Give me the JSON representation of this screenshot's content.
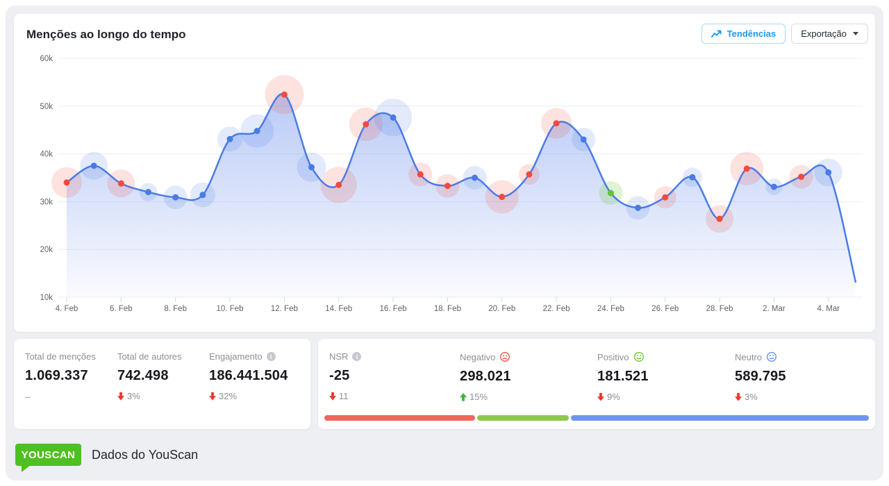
{
  "header": {
    "title": "Menções ao longo do tempo",
    "trends_button": "Tendências",
    "export_button": "Exportação"
  },
  "chart_data": {
    "type": "area",
    "title": "Menções ao longo do tempo",
    "xlabel": "",
    "ylabel": "",
    "grid": "horizontal",
    "legend": "none",
    "y_ticks": [
      "60k",
      "50k",
      "40k",
      "30k",
      "20k",
      "10k"
    ],
    "y_range": [
      10000,
      60000
    ],
    "x_tick_labels": [
      "4. Feb",
      "6. Feb",
      "8. Feb",
      "10. Feb",
      "12. Feb",
      "14. Feb",
      "16. Feb",
      "18. Feb",
      "20. Feb",
      "22. Feb",
      "24. Feb",
      "26. Feb",
      "28. Feb",
      "2. Mar",
      "4. Mar"
    ],
    "series_name": "Menções",
    "points": [
      {
        "date": "4. Feb",
        "value": 34000,
        "sentiment": "negative",
        "halo": 22,
        "dot": true
      },
      {
        "date": "5. Feb",
        "value": 37500,
        "sentiment": "neutral",
        "halo": 20,
        "dot": true
      },
      {
        "date": "6. Feb",
        "value": 33800,
        "sentiment": "negative",
        "halo": 20,
        "dot": true
      },
      {
        "date": "7. Feb",
        "value": 32000,
        "sentiment": "neutral",
        "halo": 13,
        "dot": true
      },
      {
        "date": "8. Feb",
        "value": 30900,
        "sentiment": "neutral",
        "halo": 17,
        "dot": true
      },
      {
        "date": "9. Feb",
        "value": 31400,
        "sentiment": "neutral",
        "halo": 18,
        "dot": true
      },
      {
        "date": "10. Feb",
        "value": 43100,
        "sentiment": "neutral",
        "halo": 18,
        "dot": true
      },
      {
        "date": "11. Feb",
        "value": 44800,
        "sentiment": "neutral",
        "halo": 24,
        "dot": true
      },
      {
        "date": "12. Feb",
        "value": 52400,
        "sentiment": "negative",
        "halo": 28,
        "dot": true
      },
      {
        "date": "13. Feb",
        "value": 37200,
        "sentiment": "neutral",
        "halo": 21,
        "dot": true
      },
      {
        "date": "14. Feb",
        "value": 33500,
        "sentiment": "negative",
        "halo": 26,
        "dot": true
      },
      {
        "date": "15. Feb",
        "value": 46200,
        "sentiment": "negative",
        "halo": 24,
        "dot": true
      },
      {
        "date": "16. Feb",
        "value": 47600,
        "sentiment": "neutral",
        "halo": 27,
        "dot": true
      },
      {
        "date": "17. Feb",
        "value": 35700,
        "sentiment": "negative",
        "halo": 17,
        "dot": true
      },
      {
        "date": "18. Feb",
        "value": 33300,
        "sentiment": "negative",
        "halo": 17,
        "dot": true
      },
      {
        "date": "19. Feb",
        "value": 35000,
        "sentiment": "neutral",
        "halo": 17,
        "dot": true
      },
      {
        "date": "20. Feb",
        "value": 31000,
        "sentiment": "negative",
        "halo": 24,
        "dot": true
      },
      {
        "date": "21. Feb",
        "value": 35700,
        "sentiment": "negative",
        "halo": 15,
        "dot": true
      },
      {
        "date": "22. Feb",
        "value": 46400,
        "sentiment": "negative",
        "halo": 22,
        "dot": true
      },
      {
        "date": "23. Feb",
        "value": 43000,
        "sentiment": "neutral",
        "halo": 17,
        "dot": true
      },
      {
        "date": "24. Feb",
        "value": 31800,
        "sentiment": "positive",
        "halo": 17,
        "dot": true
      },
      {
        "date": "25. Feb",
        "value": 28700,
        "sentiment": "neutral",
        "halo": 17,
        "dot": true
      },
      {
        "date": "26. Feb",
        "value": 30900,
        "sentiment": "negative",
        "halo": 16,
        "dot": true
      },
      {
        "date": "27. Feb",
        "value": 35100,
        "sentiment": "neutral",
        "halo": 14,
        "dot": true
      },
      {
        "date": "28. Feb",
        "value": 26400,
        "sentiment": "negative",
        "halo": 20,
        "dot": true
      },
      {
        "date": "1. Mar",
        "value": 36900,
        "sentiment": "negative",
        "halo": 24,
        "dot": true
      },
      {
        "date": "2. Mar",
        "value": 33100,
        "sentiment": "neutral",
        "halo": 12,
        "dot": true
      },
      {
        "date": "3. Mar",
        "value": 35200,
        "sentiment": "negative",
        "halo": 17,
        "dot": true
      },
      {
        "date": "4. Mar",
        "value": 36100,
        "sentiment": "neutral",
        "halo": 20,
        "dot": true
      },
      {
        "date": "5. Mar",
        "value": 13200,
        "sentiment": "none",
        "halo": 0,
        "dot": false
      }
    ],
    "colors": {
      "line": "#4a7be5",
      "area_top": "rgba(86,126,235,0.48)",
      "area_bottom": "rgba(86,126,235,0.03)",
      "negative": "#f4493d",
      "positive": "#62c52f",
      "neutral": "#4a7be5",
      "grid": "#eceef1",
      "tick": "#ccd6ec",
      "axis_text": "#5d6369"
    }
  },
  "stats_left": {
    "items": [
      {
        "label": "Total de menções",
        "value": "1.069.337",
        "delta_text": "–",
        "delta_dir": "none"
      },
      {
        "label": "Total de autores",
        "value": "742.498",
        "delta_text": "3%",
        "delta_dir": "down"
      },
      {
        "label": "Engajamento",
        "value": "186.441.504",
        "delta_text": "32%",
        "delta_dir": "down",
        "info": true
      }
    ]
  },
  "stats_right": {
    "items": [
      {
        "label": "NSR",
        "value": "-25",
        "delta_text": "11",
        "delta_dir": "down",
        "info": true
      },
      {
        "label": "Negativo",
        "value": "298.021",
        "delta_text": "15%",
        "delta_dir": "up",
        "face": "sad"
      },
      {
        "label": "Positivo",
        "value": "181.521",
        "delta_text": "9%",
        "delta_dir": "down",
        "face": "smile"
      },
      {
        "label": "Neutro",
        "value": "589.795",
        "delta_text": "3%",
        "delta_dir": "down",
        "face": "neutral"
      }
    ],
    "bar": {
      "segments": [
        {
          "name": "negative",
          "color": "#f4655d",
          "pct": 27.9
        },
        {
          "name": "positive",
          "color": "#8cc94e",
          "pct": 16.9
        },
        {
          "name": "neutral",
          "color": "#6e96ef",
          "pct": 55.2
        }
      ]
    }
  },
  "footer": {
    "logo_text": "YOUSCAN",
    "text": "Dados do YouScan",
    "logo_color": "#4ec01f"
  },
  "delta_colors": {
    "up": "#3db53a",
    "down": "#e8392e"
  }
}
